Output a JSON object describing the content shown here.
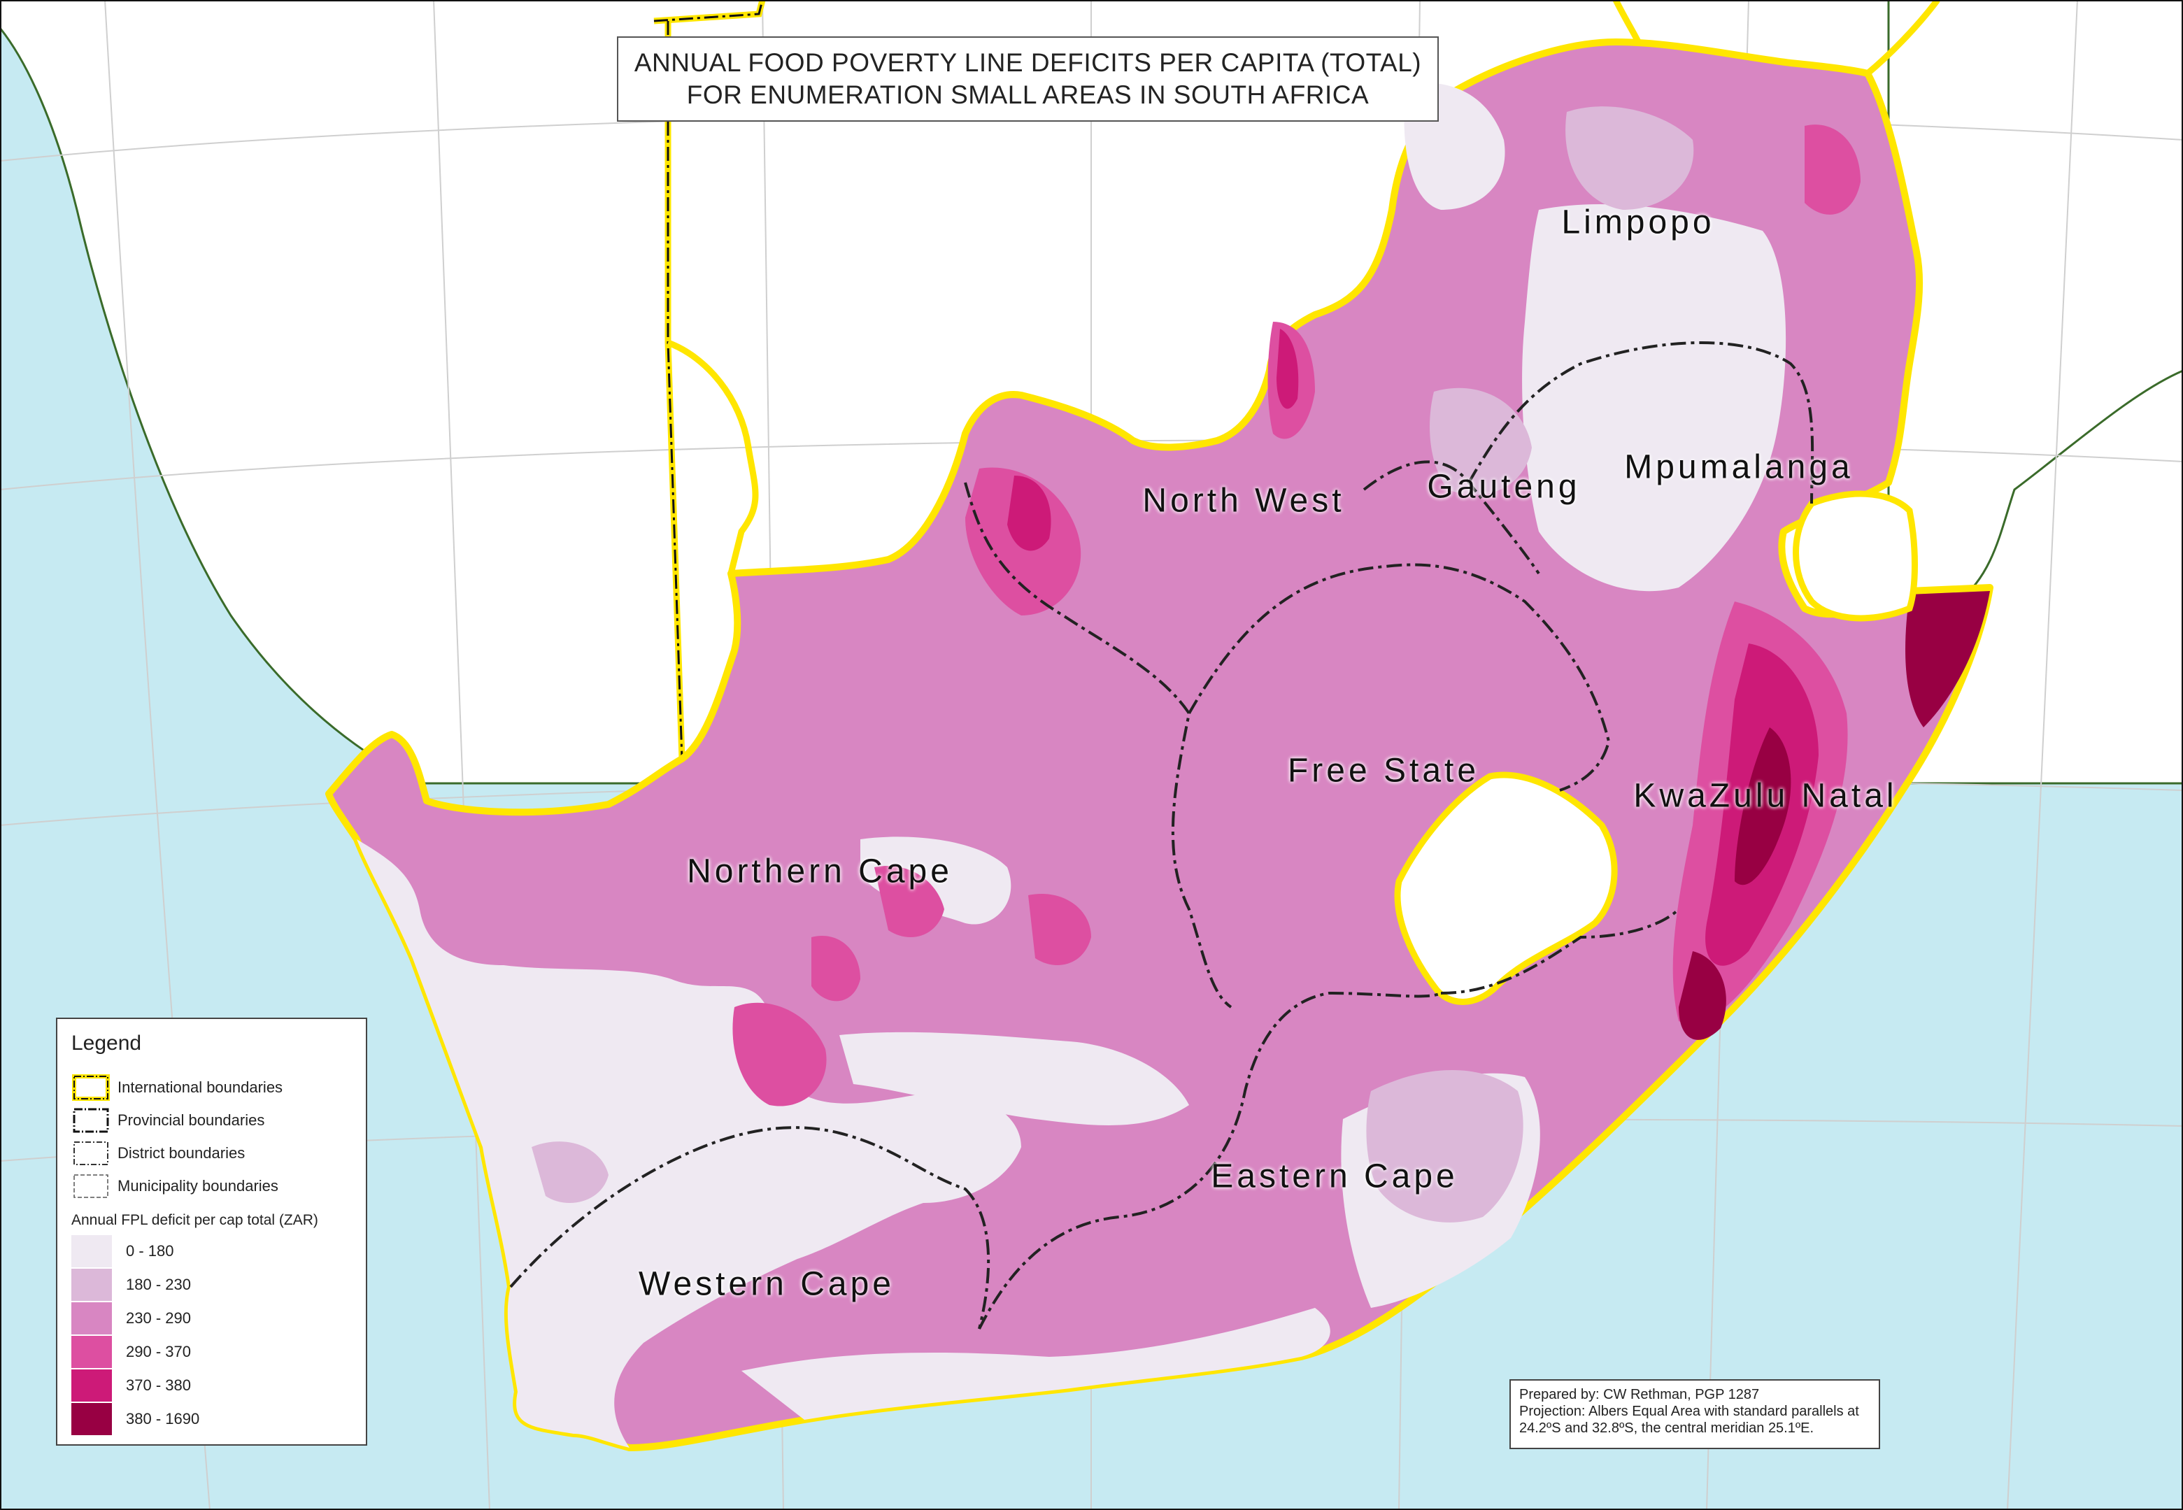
{
  "title": {
    "line1": "ANNUAL FOOD POVERTY LINE DEFICITS PER CAPITA (TOTAL)",
    "line2": "FOR ENUMERATION SMALL AREAS IN SOUTH AFRICA"
  },
  "colors": {
    "ocean": "#c6eaf2",
    "land_outside": "#ffffff",
    "international_boundary": "#ffe600",
    "graticule": "#c9c9c9"
  },
  "provinces": [
    {
      "name": "Limpopo"
    },
    {
      "name": "North West"
    },
    {
      "name": "Gauteng"
    },
    {
      "name": "Mpumalanga"
    },
    {
      "name": "Free State"
    },
    {
      "name": "KwaZulu Natal"
    },
    {
      "name": "Northern Cape"
    },
    {
      "name": "Eastern Cape"
    },
    {
      "name": "Western Cape"
    }
  ],
  "legend": {
    "title": "Legend",
    "boundaries": [
      {
        "label": "International boundaries",
        "style": "international"
      },
      {
        "label": "Provincial boundaries",
        "style": "provincial"
      },
      {
        "label": "District boundaries",
        "style": "district"
      },
      {
        "label": "Municipality boundaries",
        "style": "municipality"
      }
    ],
    "subtitle": "Annual FPL deficit per cap total (ZAR)",
    "classes": [
      {
        "label": "0 - 180",
        "color": "#efe9f2"
      },
      {
        "label": "180 - 230",
        "color": "#dcb8d9"
      },
      {
        "label": "230 - 290",
        "color": "#d886c2"
      },
      {
        "label": "290 - 370",
        "color": "#dd4fa1"
      },
      {
        "label": "370 - 380",
        "color": "#cd1a78"
      },
      {
        "label": "380 - 1690",
        "color": "#980043"
      }
    ]
  },
  "credits": {
    "line1": "Prepared by: CW Rethman, PGP 1287",
    "line2": "Projection: Albers Equal Area with standard parallels at",
    "line3": "24.2ºS  and 32.8ºS, the central meridian 25.1ºE."
  }
}
